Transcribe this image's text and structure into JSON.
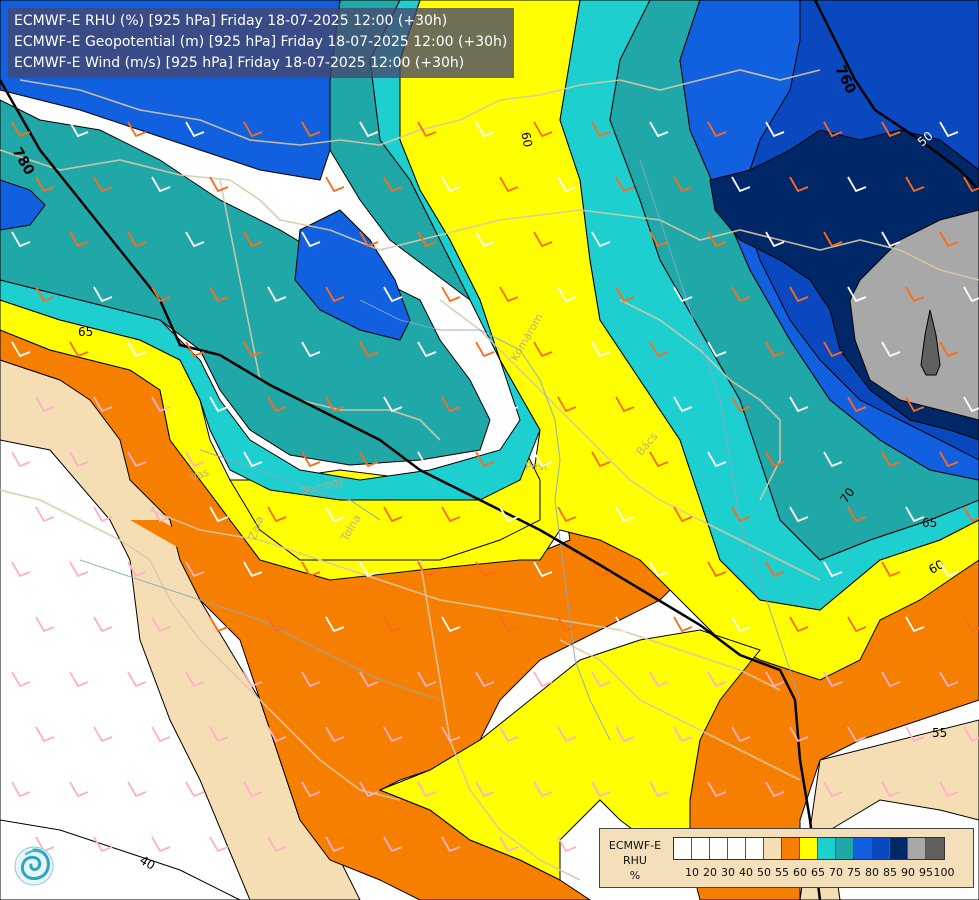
{
  "header": {
    "lines": [
      "ECMWF-E RHU (%) [925 hPa] Friday 18-07-2025 12:00 (+30h)",
      "ECMWF-E Geopotential (m) [925 hPa] Friday 18-07-2025 12:00 (+30h)",
      "ECMWF-E Wind (m/s) [925 hPa] Friday 18-07-2025 12:00 (+30h)"
    ]
  },
  "legend": {
    "title_line1": "ECMWF-E",
    "title_line2": "RHU",
    "title_line3": "%",
    "colors": [
      "#ffffff",
      "#ffffff",
      "#ffffff",
      "#ffffff",
      "#ffffff",
      "#f5deb3",
      "#f77f00",
      "#ffff00",
      "#1ecfcf",
      "#20a8a8",
      "#1060e0",
      "#0a48c0",
      "#002868",
      "#a8a8a8",
      "#606060"
    ],
    "tick_labels": [
      "10",
      "20",
      "30",
      "40",
      "50",
      "55",
      "60",
      "65",
      "70",
      "75",
      "80",
      "85",
      "90",
      "95",
      "100"
    ]
  },
  "map": {
    "rhu_contour_labels": [
      "65",
      "60",
      "70",
      "65",
      "60",
      "55",
      "50",
      "40"
    ],
    "geopotential_labels": [
      "780",
      "760"
    ],
    "place_labels": [
      "Pest",
      "Bács",
      "Komárom",
      "Tolna",
      "Zala",
      "Vas",
      "Somogy"
    ],
    "colors": {
      "rhu_40_55": "#f5deb3",
      "rhu_55_60": "#f77f00",
      "rhu_60_65": "#ffff00",
      "rhu_65_70": "#1ecfcf",
      "rhu_70_75": "#20a8a8",
      "rhu_75_80": "#1060e0",
      "rhu_80_85": "#0a48c0",
      "rhu_85_90": "#002868",
      "rhu_90_95": "#a8a8a8",
      "rhu_95_100": "#606060",
      "border": "#d8c8a8",
      "wind_barb": "#ff6a1a"
    }
  }
}
